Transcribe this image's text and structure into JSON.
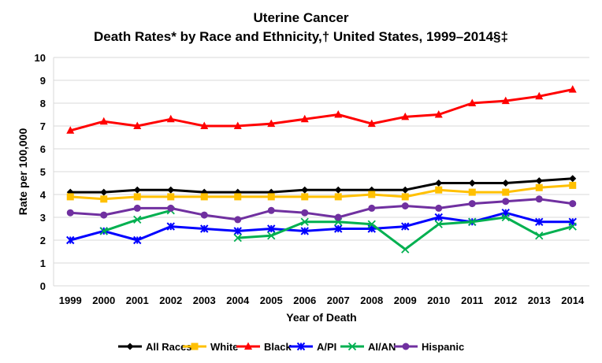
{
  "chart_data": {
    "type": "line",
    "title": "Uterine Cancer",
    "subtitle": "Death Rates* by Race and Ethnicity,† United States, 1999–2014§‡",
    "xlabel": "Year of Death",
    "ylabel": "Rate per 100,000",
    "ylim": [
      0,
      10
    ],
    "yticks": [
      "0",
      "1",
      "2",
      "3",
      "4",
      "5",
      "6",
      "7",
      "8",
      "9",
      "10"
    ],
    "grid": true,
    "legend_position": "bottom",
    "categories": [
      "1999",
      "2000",
      "2001",
      "2002",
      "2003",
      "2004",
      "2005",
      "2006",
      "2007",
      "2008",
      "2009",
      "2010",
      "2011",
      "2012",
      "2013",
      "2014"
    ],
    "series": [
      {
        "name": "All Races",
        "color": "#000000",
        "marker": "diamond",
        "values": [
          4.1,
          4.1,
          4.2,
          4.2,
          4.1,
          4.1,
          4.1,
          4.2,
          4.2,
          4.2,
          4.2,
          4.5,
          4.5,
          4.5,
          4.6,
          4.7
        ]
      },
      {
        "name": "White",
        "color": "#FFC000",
        "marker": "square",
        "values": [
          3.9,
          3.8,
          3.9,
          3.9,
          3.9,
          3.9,
          3.9,
          3.9,
          3.9,
          4.0,
          3.9,
          4.2,
          4.1,
          4.1,
          4.3,
          4.4
        ]
      },
      {
        "name": "Black",
        "color": "#FF0000",
        "marker": "triangle",
        "values": [
          6.8,
          7.2,
          7.0,
          7.3,
          7.0,
          7.0,
          7.1,
          7.3,
          7.5,
          7.1,
          7.4,
          7.5,
          8.0,
          8.1,
          8.3,
          8.6
        ]
      },
      {
        "name": "A/PI",
        "color": "#0000FF",
        "marker": "star",
        "values": [
          2.0,
          2.4,
          2.0,
          2.6,
          2.5,
          2.4,
          2.5,
          2.4,
          2.5,
          2.5,
          2.6,
          3.0,
          2.8,
          3.2,
          2.8,
          2.8
        ]
      },
      {
        "name": "AI/AN",
        "color": "#00B050",
        "marker": "x",
        "values": [
          null,
          2.4,
          2.9,
          3.3,
          null,
          2.1,
          2.2,
          2.8,
          2.8,
          2.7,
          1.6,
          2.7,
          2.8,
          3.0,
          2.2,
          2.6
        ]
      },
      {
        "name": "Hispanic",
        "color": "#7030A0",
        "marker": "circle",
        "values": [
          3.2,
          3.1,
          3.4,
          3.4,
          3.1,
          2.9,
          3.3,
          3.2,
          3.0,
          3.4,
          3.5,
          3.4,
          3.6,
          3.7,
          3.8,
          3.6
        ]
      }
    ]
  }
}
